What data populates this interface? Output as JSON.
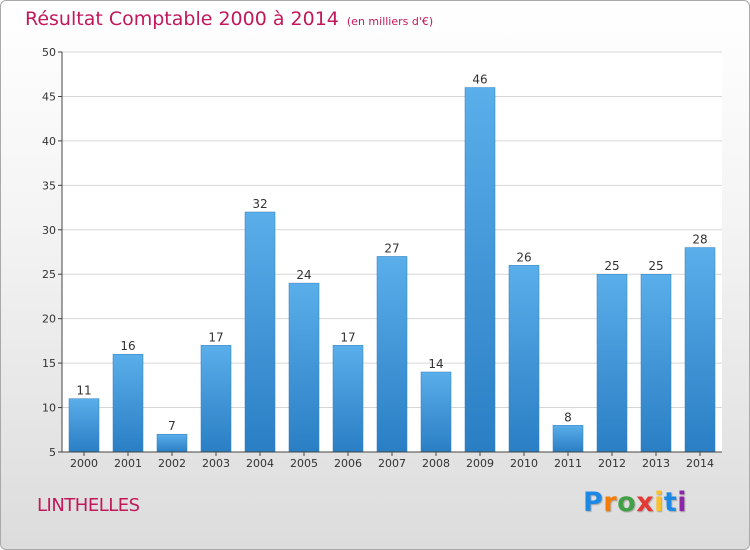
{
  "chart_data": {
    "type": "bar",
    "title": "Résultat Comptable 2000 à 2014",
    "subtitle": "(en milliers d'€)",
    "categories": [
      "2000",
      "2001",
      "2002",
      "2003",
      "2004",
      "2005",
      "2006",
      "2007",
      "2008",
      "2009",
      "2010",
      "2011",
      "2012",
      "2013",
      "2014"
    ],
    "values": [
      11,
      16,
      7,
      17,
      32,
      24,
      17,
      27,
      14,
      46,
      26,
      8,
      25,
      25,
      28
    ],
    "ylim": [
      5,
      50
    ],
    "yticks": [
      5,
      10,
      15,
      20,
      25,
      30,
      35,
      40,
      45,
      50
    ],
    "grid": true,
    "xlabel": "",
    "ylabel": ""
  },
  "footer": {
    "commune": "LINTHELLES",
    "logo_letters": [
      {
        "ch": "P",
        "color": "#1e88e5"
      },
      {
        "ch": "r",
        "color": "#f57c00"
      },
      {
        "ch": "o",
        "color": "#43a047"
      },
      {
        "ch": "x",
        "color": "#e53935"
      },
      {
        "ch": "i",
        "color": "#fbc02d"
      },
      {
        "ch": "t",
        "color": "#1e88e5"
      },
      {
        "ch": "i",
        "color": "#8e24aa"
      }
    ]
  },
  "colors": {
    "title": "#c2185b",
    "bar_top": "#5aaeea",
    "bar_bottom": "#2a7ec4",
    "grid": "#d7d7d7",
    "axis": "#444444"
  }
}
